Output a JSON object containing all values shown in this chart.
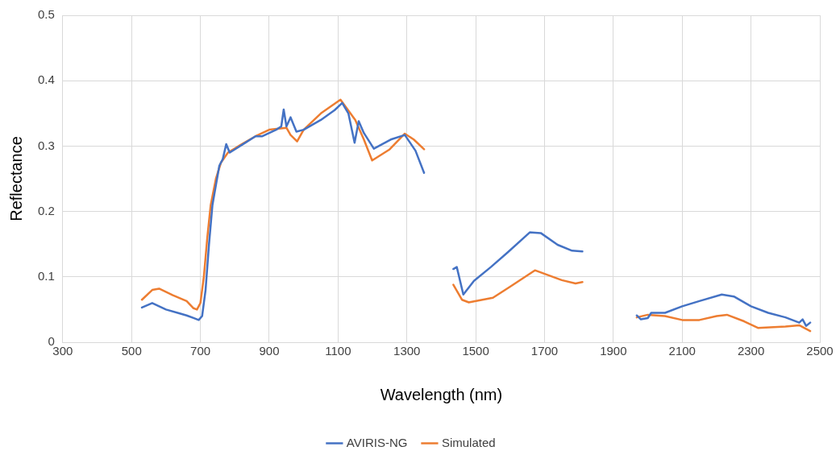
{
  "chart_data": {
    "type": "line",
    "xlabel": "Wavelength (nm)",
    "ylabel": "Reflectance",
    "xlim": [
      300,
      2500
    ],
    "xticks": [
      300,
      500,
      700,
      900,
      1100,
      1300,
      1500,
      1700,
      1900,
      2100,
      2300,
      2500
    ],
    "ylim": [
      0,
      0.5
    ],
    "yticks": [
      0,
      0.1,
      0.2,
      0.3,
      0.4,
      0.5
    ],
    "grid": true,
    "legend": "bottom",
    "marker": "none",
    "line_style": "solid",
    "series": [
      {
        "name": "AVIRIS-NG",
        "color": "#4472c4",
        "x": [
          530,
          560,
          580,
          600,
          640,
          660,
          680,
          695,
          705,
          715,
          725,
          735,
          745,
          755,
          765,
          775,
          785,
          800,
          830,
          860,
          880,
          900,
          920,
          935,
          942,
          950,
          962,
          979,
          1000,
          1050,
          1090,
          1112,
          1130,
          1148,
          1160,
          1175,
          1204,
          1253,
          1294,
          1325,
          1350,
          1400,
          1435,
          1445,
          1464,
          1495,
          1544,
          1592,
          1657,
          1689,
          1738,
          1780,
          1810,
          1900,
          1968,
          1980,
          2000,
          2010,
          2050,
          2100,
          2150,
          2215,
          2250,
          2300,
          2350,
          2400,
          2440,
          2450,
          2460,
          2472
        ],
        "values": [
          0.053,
          0.06,
          0.055,
          0.05,
          0.044,
          0.041,
          0.037,
          0.034,
          0.04,
          0.08,
          0.15,
          0.21,
          0.24,
          0.27,
          0.28,
          0.303,
          0.29,
          0.295,
          0.305,
          0.315,
          0.315,
          0.32,
          0.325,
          0.33,
          0.356,
          0.33,
          0.344,
          0.322,
          0.325,
          0.34,
          0.355,
          0.366,
          0.35,
          0.305,
          0.338,
          0.32,
          0.296,
          0.31,
          0.317,
          0.293,
          0.259,
          null,
          0.112,
          0.115,
          0.073,
          0.094,
          0.115,
          0.137,
          0.168,
          0.167,
          0.149,
          0.14,
          0.139,
          null,
          0.041,
          0.035,
          0.037,
          0.045,
          0.045,
          0.055,
          0.063,
          0.073,
          0.07,
          0.055,
          0.045,
          0.038,
          0.03,
          0.035,
          0.025,
          0.03
        ]
      },
      {
        "name": "Simulated",
        "color": "#ed7d31",
        "x": [
          530,
          560,
          580,
          620,
          660,
          680,
          690,
          700,
          710,
          720,
          730,
          745,
          760,
          780,
          820,
          860,
          900,
          950,
          962,
          981,
          1000,
          1050,
          1107,
          1150,
          1175,
          1199,
          1250,
          1294,
          1320,
          1350,
          1400,
          1435,
          1460,
          1480,
          1550,
          1600,
          1672,
          1750,
          1790,
          1810,
          1900,
          1968,
          2000,
          2050,
          2100,
          2150,
          2200,
          2230,
          2280,
          2320,
          2400,
          2440,
          2472
        ],
        "values": [
          0.065,
          0.08,
          0.082,
          0.072,
          0.063,
          0.052,
          0.05,
          0.06,
          0.1,
          0.16,
          0.21,
          0.25,
          0.275,
          0.29,
          0.303,
          0.315,
          0.325,
          0.328,
          0.317,
          0.307,
          0.325,
          0.35,
          0.371,
          0.34,
          0.31,
          0.278,
          0.295,
          0.319,
          0.31,
          0.295,
          null,
          0.088,
          0.065,
          0.061,
          0.068,
          0.085,
          0.11,
          0.095,
          0.09,
          0.092,
          null,
          0.038,
          0.042,
          0.04,
          0.034,
          0.034,
          0.04,
          0.042,
          0.032,
          0.022,
          0.024,
          0.026,
          0.017
        ]
      }
    ]
  }
}
